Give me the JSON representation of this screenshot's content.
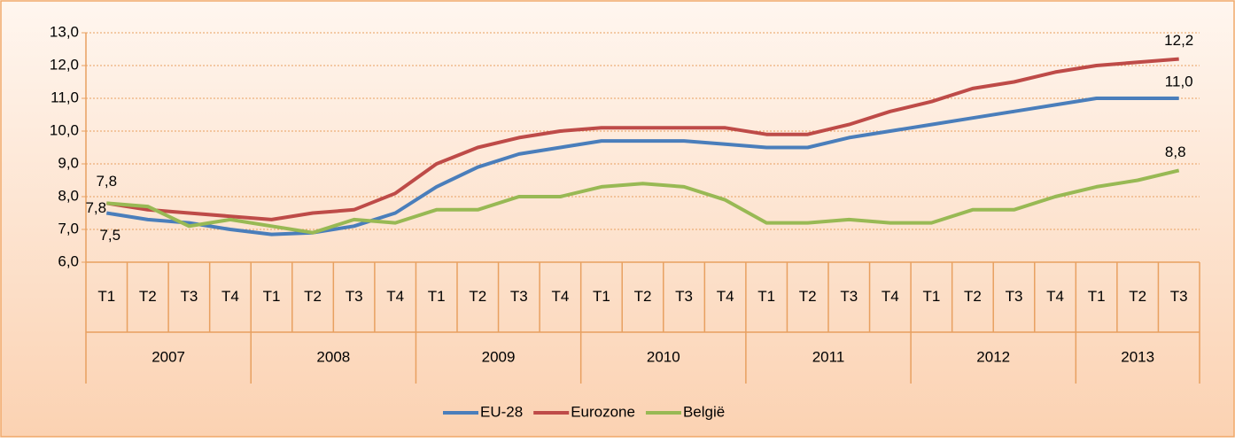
{
  "chart_data": {
    "type": "line",
    "categories": [
      "T1",
      "T2",
      "T3",
      "T4",
      "T1",
      "T2",
      "T3",
      "T4",
      "T1",
      "T2",
      "T3",
      "T4",
      "T1",
      "T2",
      "T3",
      "T4",
      "T1",
      "T2",
      "T3",
      "T4",
      "T1",
      "T2",
      "T3",
      "T4",
      "T1",
      "T2",
      "T3"
    ],
    "years": [
      "2007",
      "2008",
      "2009",
      "2010",
      "2011",
      "2012",
      "2013"
    ],
    "series": [
      {
        "name": "EU-28",
        "color": "#4a7ebb",
        "values": [
          7.5,
          7.3,
          7.2,
          7.0,
          6.85,
          6.9,
          7.1,
          7.5,
          8.3,
          8.9,
          9.3,
          9.5,
          9.7,
          9.7,
          9.7,
          9.6,
          9.5,
          9.5,
          9.8,
          10.0,
          10.2,
          10.4,
          10.6,
          10.8,
          11.0,
          11.0,
          11.0
        ],
        "value_labels": [
          "7,5",
          null,
          null,
          null,
          null,
          null,
          null,
          null,
          null,
          null,
          null,
          null,
          null,
          null,
          null,
          null,
          null,
          null,
          null,
          null,
          null,
          null,
          null,
          null,
          null,
          null,
          "11,0"
        ]
      },
      {
        "name": "Eurozone",
        "color": "#be4b48",
        "values": [
          7.8,
          7.6,
          7.5,
          7.4,
          7.3,
          7.5,
          7.6,
          8.1,
          9.0,
          9.5,
          9.8,
          10.0,
          10.1,
          10.1,
          10.1,
          10.1,
          9.9,
          9.9,
          10.2,
          10.6,
          10.9,
          11.3,
          11.5,
          11.8,
          12.0,
          12.1,
          12.2
        ],
        "value_labels": [
          "7,8",
          null,
          null,
          null,
          null,
          null,
          null,
          null,
          null,
          null,
          null,
          null,
          null,
          null,
          null,
          null,
          null,
          null,
          null,
          null,
          null,
          null,
          null,
          null,
          null,
          null,
          "12,2"
        ]
      },
      {
        "name": "België",
        "color": "#98b954",
        "values": [
          7.8,
          7.7,
          7.1,
          7.3,
          7.1,
          6.9,
          7.3,
          7.2,
          7.6,
          7.6,
          8.0,
          8.0,
          8.3,
          8.4,
          8.3,
          7.9,
          7.2,
          7.2,
          7.3,
          7.2,
          7.2,
          7.6,
          7.6,
          8.0,
          8.3,
          8.5,
          8.8
        ],
        "value_labels": [
          "7,8",
          null,
          null,
          null,
          null,
          null,
          null,
          null,
          null,
          null,
          null,
          null,
          null,
          null,
          null,
          null,
          null,
          null,
          null,
          null,
          null,
          null,
          null,
          null,
          null,
          null,
          "8,8"
        ]
      }
    ],
    "ylim": [
      6,
      13
    ],
    "yticks": [
      {
        "value": 6,
        "label": "6,0"
      },
      {
        "value": 7,
        "label": "7,0"
      },
      {
        "value": 8,
        "label": "8,0"
      },
      {
        "value": 9,
        "label": "9,0"
      },
      {
        "value": 10,
        "label": "10,0"
      },
      {
        "value": 11,
        "label": "11,0"
      },
      {
        "value": 12,
        "label": "12,0"
      },
      {
        "value": 13,
        "label": "13,0"
      }
    ],
    "grid": true,
    "legend": "bottom"
  }
}
